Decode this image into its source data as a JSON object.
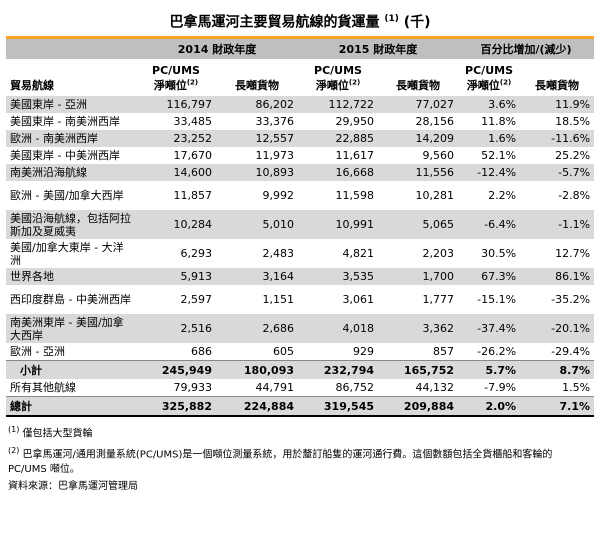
{
  "title": "巴拿馬運河主要貿易航線的貨運量",
  "title_note": "(1)",
  "title_unit": "(千)",
  "headers": {
    "year2014": "2014 財政年度",
    "year2015": "2015 財政年度",
    "pct": "百分比增加/(減少)",
    "route": "貿易航線",
    "pcums": "PC/UMS",
    "net_ton": "淨噸位",
    "net_ton_note": "(2)",
    "long_ton": "長噸貨物"
  },
  "rows": [
    {
      "route": "美國東岸 - 亞洲",
      "a": "116,797",
      "b": "86,202",
      "c": "112,722",
      "d": "77,027",
      "e": "3.6%",
      "f": "11.9%"
    },
    {
      "route": "美國東岸 - 南美洲西岸",
      "a": "33,485",
      "b": "33,376",
      "c": "29,950",
      "d": "28,156",
      "e": "11.8%",
      "f": "18.5%"
    },
    {
      "route": "歐洲 - 南美洲西岸",
      "a": "23,252",
      "b": "12,557",
      "c": "22,885",
      "d": "14,209",
      "e": "1.6%",
      "f": "-11.6%"
    },
    {
      "route": "美國東岸 - 中美洲西岸",
      "a": "17,670",
      "b": "11,973",
      "c": "11,617",
      "d": "9,560",
      "e": "52.1%",
      "f": "25.2%"
    },
    {
      "route": "南美洲沿海航線",
      "a": "14,600",
      "b": "10,893",
      "c": "16,668",
      "d": "11,556",
      "e": "-12.4%",
      "f": "-5.7%"
    },
    {
      "route": "歐洲 - 美國/加拿大西岸",
      "a": "11,857",
      "b": "9,992",
      "c": "11,598",
      "d": "10,281",
      "e": "2.2%",
      "f": "-2.8%"
    },
    {
      "route": "美國沿海航線，包括阿拉斯加及夏威夷",
      "a": "10,284",
      "b": "5,010",
      "c": "10,991",
      "d": "5,065",
      "e": "-6.4%",
      "f": "-1.1%"
    },
    {
      "route": "美國/加拿大東岸 - 大洋洲",
      "a": "6,293",
      "b": "2,483",
      "c": "4,821",
      "d": "2,203",
      "e": "30.5%",
      "f": "12.7%"
    },
    {
      "route": "世界各地",
      "a": "5,913",
      "b": "3,164",
      "c": "3,535",
      "d": "1,700",
      "e": "67.3%",
      "f": "86.1%"
    },
    {
      "route": "西印度群島 - 中美洲西岸",
      "a": "2,597",
      "b": "1,151",
      "c": "3,061",
      "d": "1,777",
      "e": "-15.1%",
      "f": "-35.2%"
    },
    {
      "route": "南美洲東岸 - 美國/加拿大西岸",
      "a": "2,516",
      "b": "2,686",
      "c": "4,018",
      "d": "3,362",
      "e": "-37.4%",
      "f": "-20.1%"
    },
    {
      "route": "歐洲 - 亞洲",
      "a": "686",
      "b": "605",
      "c": "929",
      "d": "857",
      "e": "-26.2%",
      "f": "-29.4%"
    }
  ],
  "subtotal": {
    "route": "小計",
    "a": "245,949",
    "b": "180,093",
    "c": "232,794",
    "d": "165,752",
    "e": "5.7%",
    "f": "8.7%"
  },
  "others": {
    "route": "所有其他航線",
    "a": "79,933",
    "b": "44,791",
    "c": "86,752",
    "d": "44,132",
    "e": "-7.9%",
    "f": "1.5%"
  },
  "total": {
    "route": "總計",
    "a": "325,882",
    "b": "224,884",
    "c": "319,545",
    "d": "209,884",
    "e": "2.0%",
    "f": "7.1%"
  },
  "notes": {
    "n1_mark": "(1)",
    "n1": "僅包括大型貨輪",
    "n2_mark": "(2)",
    "n2": "巴拿馬運河/通用測量系統(PC/UMS)是一個噸位測量系統，用於釐訂船隻的運河通行費。這個數額包括全貨櫃船和客輪的 PC/UMS 噸位。",
    "source": "資料來源：巴拿馬運河管理局"
  },
  "colors": {
    "accent": "#f6a623",
    "header_gray": "#bfbfbf",
    "row_shade": "#d9d9d9"
  }
}
